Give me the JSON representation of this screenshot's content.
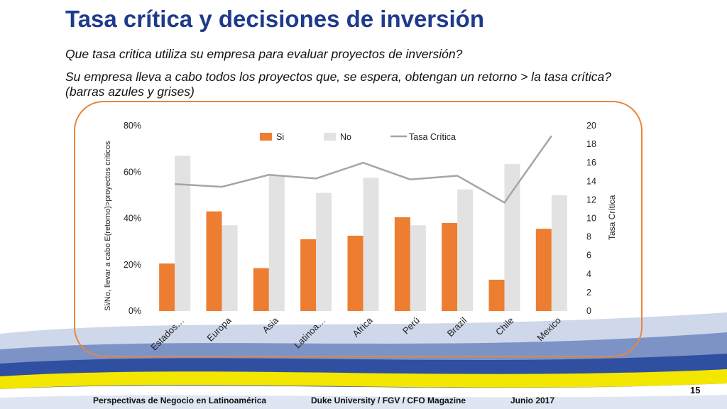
{
  "slide": {
    "title": "Tasa crítica y decisiones de inversión",
    "question1": "Que tasa critica utiliza su empresa para evaluar proyectos de inversión?",
    "question2": "Su empresa lleva a cabo todos los proyectos que, se espera, obtengan un retorno > la tasa crítica? (barras azules y grises)"
  },
  "footer": {
    "left": "Perspectivas de Negocio en Latinoamérica",
    "center": "Duke University / FGV / CFO Magazine",
    "date": "Junio 2017",
    "page": "15"
  },
  "colors": {
    "title": "#1f3b8c",
    "si": "#ed7d31",
    "no": "#e2e2e2",
    "tasa": "#a5a5a5",
    "frame": "#e8863a"
  },
  "chart_data": {
    "type": "bar",
    "categories": [
      "Estados…",
      "Europa",
      "Asia",
      "Latinoa…",
      "Africa",
      "Perú",
      "Brazil",
      "Chile",
      "Mexico"
    ],
    "series": [
      {
        "name": "Si",
        "type": "bar",
        "axis": "left",
        "values": [
          20.5,
          43,
          18.5,
          31,
          32.5,
          40.5,
          38,
          13.5,
          35.5
        ]
      },
      {
        "name": "No",
        "type": "bar",
        "axis": "left",
        "values": [
          67,
          37,
          58.5,
          51,
          57.5,
          37,
          52.5,
          63.5,
          50
        ]
      },
      {
        "name": "Tasa Crítica",
        "type": "line",
        "axis": "right",
        "values": [
          13.7,
          13.4,
          14.7,
          14.3,
          16,
          14.2,
          14.6,
          11.7,
          18.9
        ]
      }
    ],
    "ylabel": "Si/No, llevar a cabo E(retorno)>proyectos criticos",
    "y2label": "Tasa Crítica",
    "ylim": [
      0,
      80
    ],
    "y2lim": [
      0,
      20
    ],
    "yticks": [
      "0%",
      "20%",
      "40%",
      "60%",
      "80%"
    ],
    "y2ticks": [
      "0",
      "2",
      "4",
      "6",
      "8",
      "10",
      "12",
      "14",
      "16",
      "18",
      "20"
    ],
    "legend": "top-center",
    "grid": false
  }
}
